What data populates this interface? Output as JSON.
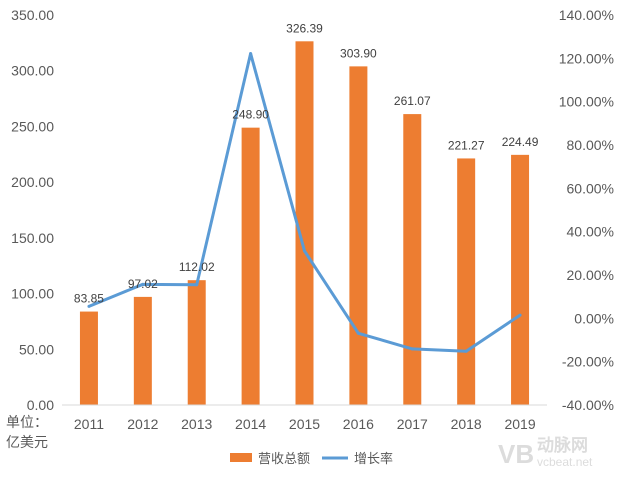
{
  "chart_data": {
    "type": "bar+line",
    "categories": [
      "2011",
      "2012",
      "2013",
      "2014",
      "2015",
      "2016",
      "2017",
      "2018",
      "2019"
    ],
    "series": [
      {
        "name": "营收总额",
        "type": "bar",
        "axis": "left",
        "color": "#ED7D31",
        "values": [
          83.85,
          97.02,
          112.02,
          248.9,
          326.39,
          303.9,
          261.07,
          221.27,
          224.49
        ],
        "labels": [
          "83.85",
          "97.02",
          "112.02",
          "248.90",
          "326.39",
          "303.90",
          "261.07",
          "221.27",
          "224.49"
        ]
      },
      {
        "name": "增长率",
        "type": "line",
        "axis": "right",
        "color": "#5B9BD5",
        "values": [
          5.5,
          15.7,
          15.5,
          122.2,
          31.1,
          -6.9,
          -14.1,
          -15.2,
          1.5
        ]
      }
    ],
    "y_left": {
      "min": 0,
      "max": 350,
      "ticks": [
        "0.00",
        "50.00",
        "100.00",
        "150.00",
        "200.00",
        "250.00",
        "300.00",
        "350.00"
      ]
    },
    "y_right": {
      "min": -40,
      "max": 140,
      "unit": "%",
      "ticks": [
        "-40.00%",
        "-20.00%",
        "0.00%",
        "20.00%",
        "40.00%",
        "60.00%",
        "80.00%",
        "100.00%",
        "120.00%",
        "140.00%"
      ]
    },
    "unit_label": [
      "单位：",
      "亿美元"
    ],
    "grid": false,
    "legend_position": "bottom"
  },
  "watermark": {
    "logo": "VB",
    "text_cn": "动脉网",
    "text_en": "vcbeat.net"
  }
}
